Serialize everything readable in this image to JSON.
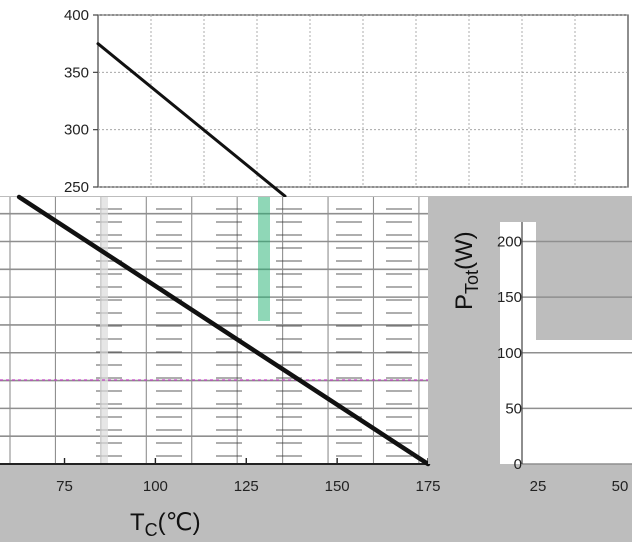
{
  "chart_data": [
    {
      "type": "line",
      "title": "",
      "ylim": [
        250,
        400
      ],
      "yticks": [
        "400",
        "350",
        "300",
        "250"
      ],
      "series": [
        {
          "x": [
            25,
            37.5
          ],
          "y": [
            375,
            242
          ]
        }
      ],
      "grid": true
    },
    {
      "type": "line",
      "title": "",
      "xlabel": "TC(℃)",
      "ylabel": "PTot(W)",
      "xticks": [
        "75",
        "100",
        "125",
        "150",
        "175"
      ],
      "xlim": [
        60,
        175
      ],
      "yticks": [
        "0",
        "50",
        "100",
        "150",
        "200"
      ],
      "ylim": [
        0,
        240
      ],
      "series": [
        {
          "x": [
            62.5,
            175
          ],
          "y": [
            240,
            0
          ]
        }
      ],
      "grid": true
    }
  ],
  "stray_ticks": [
    "25",
    "50"
  ],
  "axis_titles": {
    "x_main": "T",
    "x_sub": "C",
    "x_unit": "(℃)",
    "y_main": "P",
    "y_sub": "Tot",
    "y_unit": "(W)"
  },
  "colors": {
    "line": "#111111",
    "plot_bg": "#ffffff",
    "page_bg": "#bdbdbd"
  }
}
